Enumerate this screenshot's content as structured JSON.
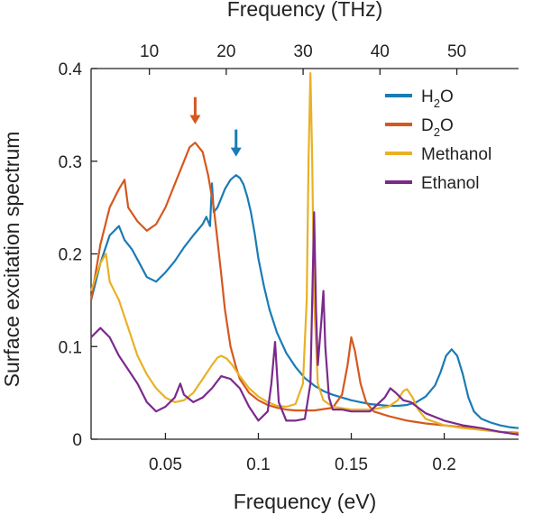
{
  "chart_data": {
    "type": "line",
    "title": "",
    "xlabel": "Frequency (eV)",
    "x2label": "Frequency (THz)",
    "ylabel": "Surface excitation spectrum",
    "xlim": [
      0.01,
      0.24
    ],
    "ylim": [
      0,
      0.4
    ],
    "x_ticks": [
      0.05,
      0.1,
      0.15,
      0.2
    ],
    "x_tick_labels": [
      "0.05",
      "0.1",
      "0.15",
      "0.2"
    ],
    "y_ticks": [
      0,
      0.1,
      0.2,
      0.3,
      0.4
    ],
    "y_tick_labels": [
      "0",
      "0.1",
      "0.2",
      "0.3",
      "0.4"
    ],
    "x2_ticks": [
      10,
      20,
      30,
      40,
      50
    ],
    "x2_tick_labels": [
      "10",
      "20",
      "30",
      "40",
      "50"
    ],
    "legend_position": "top-right",
    "grid": false,
    "series": [
      {
        "name": "H2O",
        "name_base": "H",
        "name_sub": "2",
        "name_tail": "O",
        "color": "#1a7bb5",
        "x": [
          0.01,
          0.015,
          0.02,
          0.025,
          0.028,
          0.032,
          0.036,
          0.04,
          0.045,
          0.05,
          0.055,
          0.06,
          0.065,
          0.07,
          0.072,
          0.074,
          0.075,
          0.076,
          0.078,
          0.08,
          0.082,
          0.085,
          0.088,
          0.09,
          0.092,
          0.094,
          0.096,
          0.098,
          0.1,
          0.103,
          0.106,
          0.11,
          0.115,
          0.12,
          0.125,
          0.13,
          0.135,
          0.14,
          0.145,
          0.15,
          0.155,
          0.16,
          0.165,
          0.17,
          0.175,
          0.18,
          0.185,
          0.19,
          0.195,
          0.198,
          0.201,
          0.204,
          0.207,
          0.21,
          0.213,
          0.216,
          0.22,
          0.225,
          0.23,
          0.235,
          0.24
        ],
        "y": [
          0.15,
          0.19,
          0.22,
          0.23,
          0.215,
          0.205,
          0.19,
          0.175,
          0.17,
          0.18,
          0.192,
          0.207,
          0.22,
          0.232,
          0.24,
          0.23,
          0.276,
          0.245,
          0.25,
          0.26,
          0.27,
          0.28,
          0.285,
          0.282,
          0.275,
          0.262,
          0.245,
          0.222,
          0.195,
          0.165,
          0.14,
          0.115,
          0.093,
          0.078,
          0.066,
          0.058,
          0.052,
          0.048,
          0.045,
          0.042,
          0.04,
          0.038,
          0.037,
          0.036,
          0.036,
          0.037,
          0.04,
          0.046,
          0.058,
          0.072,
          0.09,
          0.097,
          0.09,
          0.07,
          0.045,
          0.03,
          0.022,
          0.018,
          0.015,
          0.013,
          0.012
        ]
      },
      {
        "name": "D2O",
        "name_base": "D",
        "name_sub": "2",
        "name_tail": "O",
        "color": "#d5581e",
        "x": [
          0.01,
          0.015,
          0.02,
          0.025,
          0.028,
          0.03,
          0.035,
          0.04,
          0.045,
          0.05,
          0.055,
          0.06,
          0.063,
          0.066,
          0.07,
          0.073,
          0.076,
          0.078,
          0.08,
          0.082,
          0.085,
          0.088,
          0.09,
          0.095,
          0.1,
          0.105,
          0.11,
          0.115,
          0.12,
          0.13,
          0.14,
          0.145,
          0.148,
          0.15,
          0.152,
          0.155,
          0.158,
          0.162,
          0.17,
          0.18,
          0.19,
          0.2,
          0.21,
          0.22,
          0.23,
          0.24
        ],
        "y": [
          0.15,
          0.21,
          0.25,
          0.27,
          0.28,
          0.25,
          0.235,
          0.225,
          0.232,
          0.25,
          0.275,
          0.3,
          0.315,
          0.32,
          0.31,
          0.285,
          0.25,
          0.215,
          0.178,
          0.14,
          0.1,
          0.078,
          0.065,
          0.05,
          0.042,
          0.037,
          0.034,
          0.032,
          0.031,
          0.031,
          0.034,
          0.048,
          0.08,
          0.11,
          0.095,
          0.06,
          0.04,
          0.03,
          0.025,
          0.02,
          0.017,
          0.015,
          0.013,
          0.01,
          0.008,
          0.007
        ]
      },
      {
        "name": "Methanol",
        "color": "#e9b124",
        "x": [
          0.01,
          0.015,
          0.018,
          0.02,
          0.025,
          0.03,
          0.035,
          0.04,
          0.045,
          0.05,
          0.055,
          0.06,
          0.065,
          0.07,
          0.075,
          0.078,
          0.08,
          0.083,
          0.086,
          0.09,
          0.095,
          0.1,
          0.105,
          0.11,
          0.115,
          0.12,
          0.124,
          0.126,
          0.127,
          0.128,
          0.129,
          0.13,
          0.132,
          0.135,
          0.14,
          0.15,
          0.16,
          0.17,
          0.175,
          0.178,
          0.18,
          0.183,
          0.186,
          0.19,
          0.2,
          0.21,
          0.22,
          0.23,
          0.24
        ],
        "y": [
          0.16,
          0.19,
          0.2,
          0.17,
          0.15,
          0.12,
          0.09,
          0.07,
          0.055,
          0.045,
          0.04,
          0.042,
          0.05,
          0.065,
          0.08,
          0.088,
          0.09,
          0.087,
          0.08,
          0.068,
          0.055,
          0.046,
          0.04,
          0.036,
          0.035,
          0.038,
          0.06,
          0.15,
          0.3,
          0.395,
          0.3,
          0.15,
          0.06,
          0.042,
          0.035,
          0.032,
          0.032,
          0.035,
          0.042,
          0.052,
          0.054,
          0.045,
          0.032,
          0.022,
          0.015,
          0.012,
          0.01,
          0.008,
          0.006
        ]
      },
      {
        "name": "Ethanol",
        "color": "#7b2a8c",
        "x": [
          0.01,
          0.015,
          0.02,
          0.025,
          0.03,
          0.035,
          0.04,
          0.045,
          0.05,
          0.055,
          0.058,
          0.06,
          0.065,
          0.07,
          0.075,
          0.08,
          0.085,
          0.09,
          0.095,
          0.1,
          0.105,
          0.107,
          0.109,
          0.111,
          0.115,
          0.12,
          0.125,
          0.128,
          0.129,
          0.13,
          0.131,
          0.132,
          0.134,
          0.135,
          0.136,
          0.138,
          0.14,
          0.145,
          0.15,
          0.16,
          0.168,
          0.171,
          0.174,
          0.178,
          0.182,
          0.19,
          0.2,
          0.21,
          0.22,
          0.23,
          0.24
        ],
        "y": [
          0.11,
          0.12,
          0.11,
          0.09,
          0.075,
          0.06,
          0.04,
          0.03,
          0.035,
          0.045,
          0.06,
          0.048,
          0.04,
          0.045,
          0.055,
          0.068,
          0.065,
          0.055,
          0.035,
          0.02,
          0.03,
          0.06,
          0.105,
          0.04,
          0.02,
          0.02,
          0.022,
          0.06,
          0.15,
          0.245,
          0.14,
          0.08,
          0.13,
          0.16,
          0.1,
          0.045,
          0.032,
          0.032,
          0.03,
          0.03,
          0.045,
          0.055,
          0.05,
          0.042,
          0.04,
          0.028,
          0.02,
          0.015,
          0.012,
          0.008,
          0.005
        ]
      }
    ],
    "annotations": [
      {
        "type": "arrow",
        "color": "#d5581e",
        "x": 0.066,
        "y": 0.34
      },
      {
        "type": "arrow",
        "color": "#1a7bb5",
        "x": 0.088,
        "y": 0.305
      }
    ]
  }
}
